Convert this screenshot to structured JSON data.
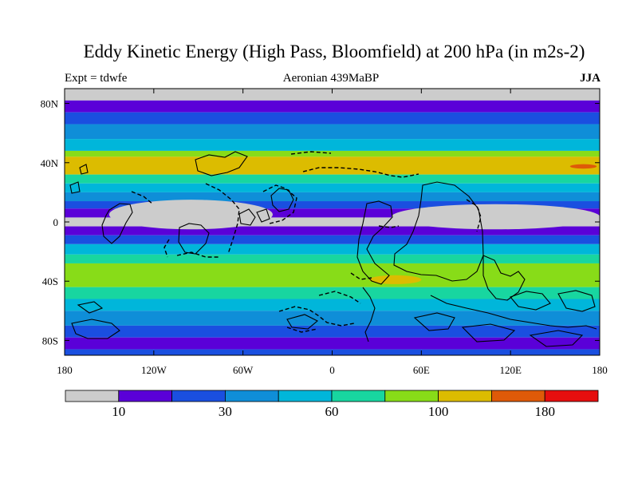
{
  "title": "Eddy Kinetic Energy (High Pass, Bloomfield) at 200 hPa (in m2s-2)",
  "subtitle_left": "Expt = tdwfe",
  "subtitle_center": "Aeronian 439MaBP",
  "subtitle_right": "JJA",
  "y_ticks": [
    {
      "label": "80N",
      "lat": 80
    },
    {
      "label": "40N",
      "lat": 40
    },
    {
      "label": "0",
      "lat": 0
    },
    {
      "label": "40S",
      "lat": -40
    },
    {
      "label": "80S",
      "lat": -80
    }
  ],
  "x_ticks": [
    {
      "label": "180",
      "lon": -180
    },
    {
      "label": "120W",
      "lon": -120
    },
    {
      "label": "60W",
      "lon": -60
    },
    {
      "label": "0",
      "lon": 0
    },
    {
      "label": "60E",
      "lon": 60
    },
    {
      "label": "120E",
      "lon": 120
    },
    {
      "label": "180",
      "lon": 180
    }
  ],
  "colorbar": {
    "colors": [
      "#cccccc",
      "#5a00d8",
      "#1a4fe0",
      "#0f8ed8",
      "#00b6da",
      "#18d6a0",
      "#88dc18",
      "#dcbc00",
      "#de5a08",
      "#e60e0e"
    ],
    "labels": [
      {
        "text": "10",
        "boundary": 1
      },
      {
        "text": "30",
        "boundary": 3
      },
      {
        "text": "60",
        "boundary": 5
      },
      {
        "text": "100",
        "boundary": 7
      },
      {
        "text": "180",
        "boundary": 9
      }
    ]
  },
  "chart_data": {
    "type": "heatmap",
    "title": "Eddy Kinetic Energy (High Pass, Bloomfield) at 200 hPa (in m2s-2)",
    "field": "eddy kinetic energy, 200 hPa, JJA",
    "units": "m2s-2",
    "xlim": [
      -180,
      180
    ],
    "ylim": [
      -90,
      90
    ],
    "contour_levels_labeled": [
      10,
      30,
      60,
      100,
      180
    ],
    "zonal_bands": [
      {
        "lat": [
          82,
          90
        ],
        "level": 0
      },
      {
        "lat": [
          74,
          82
        ],
        "level": 1
      },
      {
        "lat": [
          66,
          74
        ],
        "level": 2
      },
      {
        "lat": [
          56,
          66
        ],
        "level": 3
      },
      {
        "lat": [
          48,
          56
        ],
        "level": 4
      },
      {
        "lat": [
          44,
          48
        ],
        "level": 6
      },
      {
        "lat": [
          32,
          44
        ],
        "level": 7
      },
      {
        "lat": [
          26,
          32
        ],
        "level": 5
      },
      {
        "lat": [
          20,
          26
        ],
        "level": 4
      },
      {
        "lat": [
          14,
          20
        ],
        "level": 3
      },
      {
        "lat": [
          9,
          14
        ],
        "level": 2
      },
      {
        "lat": [
          3,
          9
        ],
        "level": 1
      },
      {
        "lat": [
          -3,
          3
        ],
        "level": 0
      },
      {
        "lat": [
          -9,
          -3
        ],
        "level": 1
      },
      {
        "lat": [
          -15,
          -9
        ],
        "level": 2
      },
      {
        "lat": [
          -22,
          -15
        ],
        "level": 4
      },
      {
        "lat": [
          -28,
          -22
        ],
        "level": 5
      },
      {
        "lat": [
          -44,
          -28
        ],
        "level": 6
      },
      {
        "lat": [
          -52,
          -44
        ],
        "level": 5
      },
      {
        "lat": [
          -60,
          -52
        ],
        "level": 4
      },
      {
        "lat": [
          -70,
          -60
        ],
        "level": 3
      },
      {
        "lat": [
          -78,
          -70
        ],
        "level": 2
      },
      {
        "lat": [
          -86,
          -78
        ],
        "level": 1
      },
      {
        "lat": [
          -90,
          -86
        ],
        "level": 2
      }
    ],
    "features": [
      {
        "name": "weak eddy zone W",
        "lon": [
          -150,
          -40
        ],
        "lat": [
          -5,
          15
        ],
        "level": 0
      },
      {
        "name": "weak eddy zone E",
        "lon": [
          40,
          180
        ],
        "lat": [
          -5,
          12
        ],
        "level": 0
      },
      {
        "name": "NH storm-track maximum",
        "lon": [
          160,
          178
        ],
        "lat": [
          36,
          39
        ],
        "level": 8
      },
      {
        "name": "SH secondary maximum",
        "lon": [
          25,
          60
        ],
        "lat": [
          -42,
          -36
        ],
        "level": 7
      }
    ]
  }
}
